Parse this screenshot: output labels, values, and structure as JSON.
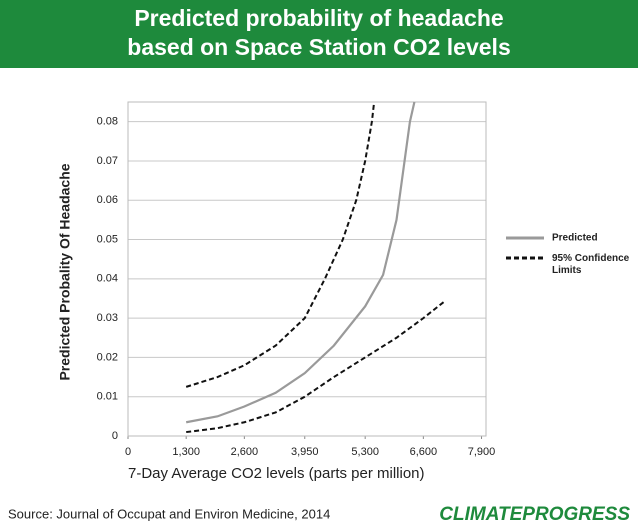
{
  "chart_data": {
    "type": "line",
    "title": "Predicted probability of headache based on Space Station CO2 levels",
    "x_label": "7-Day Average CO2 levels (parts per million)",
    "y_label": "Predicted Probality Of Headache",
    "source": "Source: Journal of Occupat and Environ Medicine, 2014",
    "logo": "CLIMATEPROGRESS",
    "xlim": [
      0,
      8000
    ],
    "ylim": [
      0,
      0.085
    ],
    "xticks": [
      0,
      {
        "value": 1300,
        "label": "1,300"
      },
      {
        "value": 2600,
        "label": "2,600"
      },
      {
        "value": 3950,
        "label": "3,950"
      },
      {
        "value": 5300,
        "label": "5,300"
      },
      {
        "value": 6600,
        "label": "6,600"
      },
      {
        "value": 7900,
        "label": "7,900"
      }
    ],
    "yticks": [
      0,
      0.01,
      0.02,
      0.03,
      0.04,
      0.05,
      0.06,
      0.07,
      0.08
    ],
    "grid": true,
    "legend": "right",
    "series": [
      {
        "name": "Predicted",
        "color": "#9a9a9a",
        "dash": false,
        "x": [
          1300,
          2000,
          2600,
          3300,
          3950,
          4600,
          5300,
          5700,
          6000,
          6300,
          6400
        ],
        "values": [
          0.0035,
          0.005,
          0.0075,
          0.011,
          0.016,
          0.023,
          0.033,
          0.041,
          0.055,
          0.08,
          0.085
        ]
      },
      {
        "name": "95% Confidence Limits",
        "color": "#111111",
        "dash": true,
        "x": [
          1300,
          2000,
          2600,
          3300,
          3950,
          4400,
          4800,
          5100,
          5300,
          5450,
          5500
        ],
        "values": [
          0.0125,
          0.015,
          0.018,
          0.023,
          0.03,
          0.04,
          0.05,
          0.06,
          0.07,
          0.08,
          0.085
        ]
      },
      {
        "color": "#111111",
        "dash": true,
        "x": [
          1300,
          2000,
          2600,
          3300,
          3950,
          4600,
          5300,
          6000,
          6600,
          7100
        ],
        "values": [
          0.001,
          0.002,
          0.0035,
          0.006,
          0.01,
          0.015,
          0.02,
          0.025,
          0.03,
          0.0345
        ]
      }
    ]
  }
}
